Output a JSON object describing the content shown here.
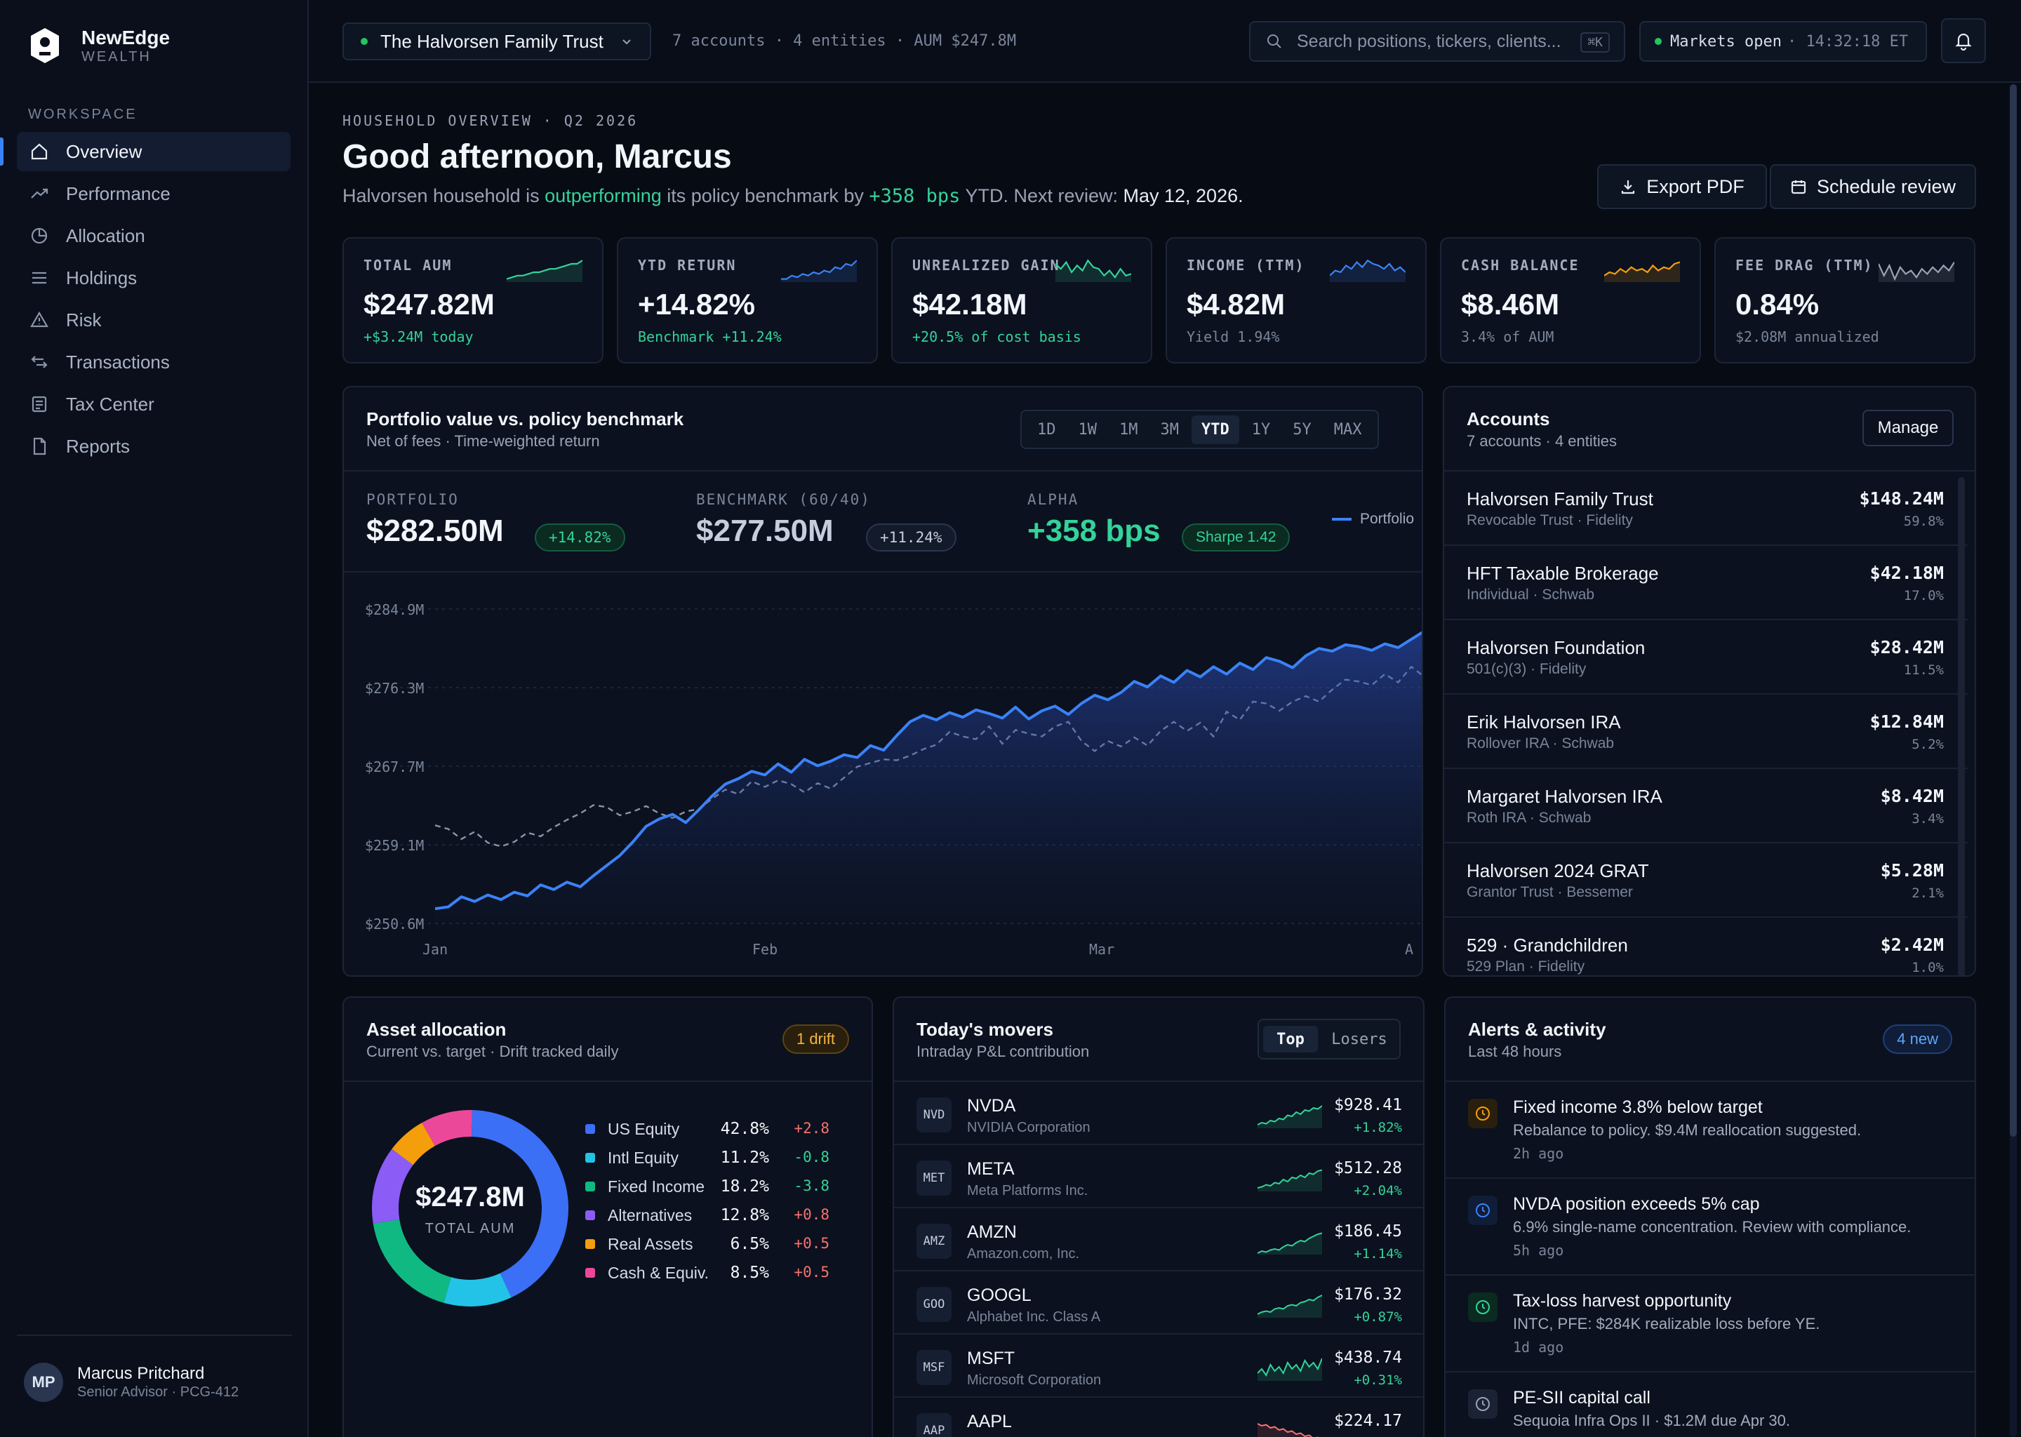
{
  "brand": {
    "name": "NewEdge",
    "sub": "WEALTH"
  },
  "sidebar": {
    "section": "WORKSPACE",
    "items": [
      {
        "label": "Overview",
        "icon": "home-icon"
      },
      {
        "label": "Performance",
        "icon": "trend-icon"
      },
      {
        "label": "Allocation",
        "icon": "pie-icon"
      },
      {
        "label": "Holdings",
        "icon": "list-icon"
      },
      {
        "label": "Risk",
        "icon": "warning-icon"
      },
      {
        "label": "Transactions",
        "icon": "swap-icon"
      },
      {
        "label": "Tax Center",
        "icon": "receipt-icon"
      },
      {
        "label": "Reports",
        "icon": "document-icon"
      }
    ],
    "user": {
      "initials": "MP",
      "name": "Marcus Pritchard",
      "role": "Senior Advisor · PCG-412"
    }
  },
  "topbar": {
    "entity": "The Halvorsen Family Trust",
    "entity_meta": "7 accounts · 4 entities · AUM $247.8M",
    "search_placeholder": "Search positions, tickers, clients...",
    "search_kbd": "⌘K",
    "market_status": "Markets open",
    "market_time": "· 14:32:18 ET"
  },
  "header": {
    "eyebrow": "HOUSEHOLD OVERVIEW · Q2 2026",
    "greeting": "Good afternoon, Marcus",
    "sub_pre": "Halvorsen household is ",
    "sub_green": "outperforming",
    "sub_mid": " its policy benchmark by ",
    "sub_bps": "+358 bps",
    "sub_post": " YTD. Next review: ",
    "sub_date": "May 12, 2026.",
    "export_label": "Export PDF",
    "schedule_label": "Schedule review"
  },
  "kpis": [
    {
      "label": "TOTAL AUM",
      "value": "$247.82M",
      "sub": "+$3.24M today",
      "sub_color": "#34d399",
      "spark_color": "#34d399"
    },
    {
      "label": "YTD RETURN",
      "value": "+14.82%",
      "sub": "Benchmark +11.24%",
      "sub_color": "#34d399",
      "spark_color": "#3b82f6"
    },
    {
      "label": "UNREALIZED GAIN",
      "value": "$42.18M",
      "sub": "+20.5% of cost basis",
      "sub_color": "#34d399",
      "spark_color": "#34d399"
    },
    {
      "label": "INCOME (TTM)",
      "value": "$4.82M",
      "sub": "Yield 1.94%",
      "sub_color": "#7a8599",
      "spark_color": "#3b82f6"
    },
    {
      "label": "CASH BALANCE",
      "value": "$8.46M",
      "sub": "3.4% of AUM",
      "sub_color": "#7a8599",
      "spark_color": "#f59e0b"
    },
    {
      "label": "FEE DRAG (TTM)",
      "value": "0.84%",
      "sub": "$2.08M annualized",
      "sub_color": "#7a8599",
      "spark_color": "#9aa3b5"
    }
  ],
  "perf": {
    "title": "Portfolio value vs. policy benchmark",
    "subtitle": "Net of fees · Time-weighted return",
    "ranges": [
      "1D",
      "1W",
      "1M",
      "3M",
      "YTD",
      "1Y",
      "5Y",
      "MAX"
    ],
    "active_range": "YTD",
    "portfolio_label": "PORTFOLIO",
    "portfolio_value": "$282.50M",
    "portfolio_pill": "+14.82%",
    "benchmark_label": "BENCHMARK (60/40)",
    "benchmark_value": "$277.50M",
    "benchmark_pill": "+11.24%",
    "alpha_label": "ALPHA",
    "alpha_value": "+358 bps",
    "alpha_pill": "Sharpe 1.42",
    "legend_portfolio": "Portfolio"
  },
  "chart_data": {
    "type": "line",
    "y_ticks": [
      "$284.9M",
      "$276.3M",
      "$267.7M",
      "$259.1M",
      "$250.6M"
    ],
    "ylim": [
      250.6,
      284.9
    ],
    "x_ticks": [
      "Jan",
      "Feb",
      "Mar",
      "A"
    ],
    "series": [
      {
        "name": "Portfolio",
        "color": "#3b82f6",
        "style": "solid",
        "values": [
          252.2,
          252.4,
          253.5,
          253.0,
          253.7,
          253.2,
          254.0,
          253.6,
          254.8,
          254.3,
          255.1,
          254.6,
          255.8,
          256.9,
          258.0,
          259.5,
          261.2,
          262.0,
          262.5,
          261.6,
          263.0,
          264.5,
          265.8,
          266.4,
          267.2,
          266.8,
          268.0,
          267.1,
          268.5,
          267.8,
          268.3,
          269.0,
          268.7,
          270.0,
          269.5,
          271.1,
          272.6,
          273.3,
          272.8,
          273.6,
          273.1,
          273.9,
          273.5,
          273.0,
          274.2,
          272.9,
          273.8,
          274.3,
          273.4,
          274.6,
          275.5,
          275.0,
          275.8,
          277.0,
          276.4,
          277.6,
          276.9,
          278.2,
          277.5,
          278.6,
          277.8,
          279.0,
          278.3,
          279.6,
          279.2,
          278.5,
          279.8,
          280.6,
          280.3,
          281.0,
          280.8,
          280.4,
          281.1,
          280.7,
          281.6,
          282.5
        ]
      },
      {
        "name": "",
        "color": "#8a94a8",
        "style": "dashed",
        "values": [
          261.3,
          260.9,
          259.8,
          260.6,
          259.4,
          259.0,
          259.5,
          260.5,
          260.1,
          261.1,
          261.9,
          262.6,
          263.5,
          263.3,
          262.4,
          262.8,
          263.4,
          262.6,
          262.1,
          262.8,
          263.1,
          264.2,
          265.2,
          264.7,
          266.1,
          265.5,
          266.2,
          265.8,
          264.9,
          265.9,
          265.3,
          266.5,
          267.7,
          268.1,
          268.5,
          268.4,
          268.9,
          269.6,
          270.1,
          271.5,
          271.0,
          270.7,
          272.1,
          270.2,
          271.7,
          271.3,
          271.0,
          272.1,
          272.6,
          270.5,
          269.4,
          270.5,
          269.9,
          270.9,
          270.0,
          271.6,
          272.6,
          271.6,
          272.5,
          271.0,
          273.7,
          272.8,
          274.8,
          274.6,
          273.8,
          274.8,
          275.4,
          274.8,
          276.1,
          277.2,
          277.0,
          276.6,
          277.8,
          276.9,
          278.6,
          277.5
        ]
      }
    ]
  },
  "accounts": {
    "title": "Accounts",
    "subtitle": "7 accounts · 4 entities",
    "manage_label": "Manage",
    "rows": [
      {
        "name": "Halvorsen Family Trust",
        "sub": "Revocable Trust · Fidelity",
        "value": "$148.24M",
        "pct": "59.8%"
      },
      {
        "name": "HFT Taxable Brokerage",
        "sub": "Individual · Schwab",
        "value": "$42.18M",
        "pct": "17.0%"
      },
      {
        "name": "Halvorsen Foundation",
        "sub": "501(c)(3) · Fidelity",
        "value": "$28.42M",
        "pct": "11.5%"
      },
      {
        "name": "Erik Halvorsen IRA",
        "sub": "Rollover IRA · Schwab",
        "value": "$12.84M",
        "pct": "5.2%"
      },
      {
        "name": "Margaret Halvorsen IRA",
        "sub": "Roth IRA · Schwab",
        "value": "$8.42M",
        "pct": "3.4%"
      },
      {
        "name": "Halvorsen 2024 GRAT",
        "sub": "Grantor Trust · Bessemer",
        "value": "$5.28M",
        "pct": "2.1%"
      },
      {
        "name": "529 · Grandchildren",
        "sub": "529 Plan · Fidelity",
        "value": "$2.42M",
        "pct": "1.0%"
      }
    ]
  },
  "allocation": {
    "title": "Asset allocation",
    "subtitle": "Current vs. target · Drift tracked daily",
    "badge": "1 drift",
    "center_value": "$247.8M",
    "center_label": "TOTAL AUM",
    "rows": [
      {
        "label": "US Equity",
        "pct": "42.8%",
        "value": 42.8,
        "drift": "+2.8",
        "color": "#3b6ff6",
        "drift_color": "#f87171"
      },
      {
        "label": "Intl Equity",
        "pct": "11.2%",
        "value": 11.2,
        "drift": "-0.8",
        "color": "#22c3e6",
        "drift_color": "#34d399"
      },
      {
        "label": "Fixed Income",
        "pct": "18.2%",
        "value": 18.2,
        "drift": "-3.8",
        "color": "#10b981",
        "drift_color": "#34d399"
      },
      {
        "label": "Alternatives",
        "pct": "12.8%",
        "value": 12.8,
        "drift": "+0.8",
        "color": "#8b5cf6",
        "drift_color": "#f87171"
      },
      {
        "label": "Real Assets",
        "pct": "6.5%",
        "value": 6.5,
        "drift": "+0.5",
        "color": "#f59e0b",
        "drift_color": "#f87171"
      },
      {
        "label": "Cash & Equiv.",
        "pct": "8.5%",
        "value": 8.5,
        "drift": "+0.5",
        "color": "#ec4899",
        "drift_color": "#f87171"
      }
    ]
  },
  "movers": {
    "title": "Today's movers",
    "subtitle": "Intraday P&L contribution",
    "tab_top": "Top",
    "tab_losers": "Losers",
    "rows": [
      {
        "tick": "NVD",
        "name": "NVDA",
        "sub": "NVIDIA Corporation",
        "price": "$928.41",
        "chg": "+1.82%",
        "up": true
      },
      {
        "tick": "MET",
        "name": "META",
        "sub": "Meta Platforms Inc.",
        "price": "$512.28",
        "chg": "+2.04%",
        "up": true
      },
      {
        "tick": "AMZ",
        "name": "AMZN",
        "sub": "Amazon.com, Inc.",
        "price": "$186.45",
        "chg": "+1.14%",
        "up": true
      },
      {
        "tick": "GOO",
        "name": "GOOGL",
        "sub": "Alphabet Inc. Class A",
        "price": "$176.32",
        "chg": "+0.87%",
        "up": true
      },
      {
        "tick": "MSF",
        "name": "MSFT",
        "sub": "Microsoft Corporation",
        "price": "$438.74",
        "chg": "+0.31%",
        "up": true
      },
      {
        "tick": "AAP",
        "name": "AAPL",
        "sub": "",
        "price": "$224.17",
        "chg": "",
        "up": false
      }
    ]
  },
  "alerts": {
    "title": "Alerts & activity",
    "subtitle": "Last 48 hours",
    "badge": "4 new",
    "rows": [
      {
        "title": "Fixed income 3.8% below target",
        "desc": "Rebalance to policy. $9.4M reallocation suggested.",
        "when": "2h ago",
        "color": "#f59e0b",
        "bg": "#2a1f0c"
      },
      {
        "title": "NVDA position exceeds 5% cap",
        "desc": "6.9% single-name concentration. Review with compliance.",
        "when": "5h ago",
        "color": "#3b82f6",
        "bg": "#0f1d38"
      },
      {
        "title": "Tax-loss harvest opportunity",
        "desc": "INTC, PFE: $284K realizable loss before YE.",
        "when": "1d ago",
        "color": "#34d399",
        "bg": "#0b2a20"
      },
      {
        "title": "PE-SII capital call",
        "desc": "Sequoia Infra Ops II · $1.2M due Apr 30.",
        "when": "",
        "color": "#9aa3b5",
        "bg": "#1a2233"
      }
    ]
  }
}
